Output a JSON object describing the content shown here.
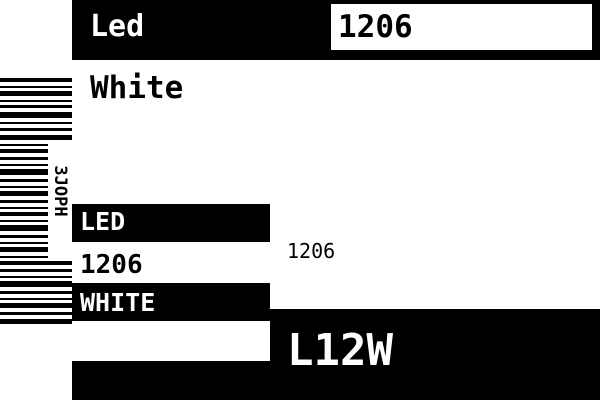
{
  "label": {
    "top_title": "Led",
    "top_size": "1206",
    "color": "White",
    "barcode_code": "3JOPH",
    "type_label": "LED",
    "package": "1206",
    "size_small": "1206",
    "color_label": "WHITE",
    "part_number": "L12W"
  },
  "colors": {
    "ink": "#000000",
    "paper": "#ffffff"
  }
}
